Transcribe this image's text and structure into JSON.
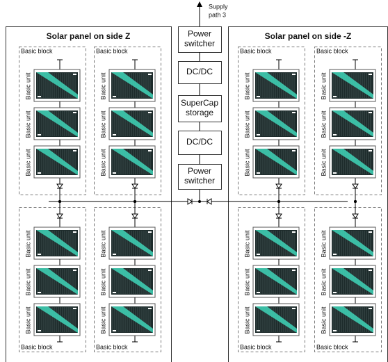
{
  "supply_label": [
    "Supply",
    "path 3"
  ],
  "center_boxes": [
    {
      "lines": [
        "Power",
        "switcher"
      ]
    },
    {
      "lines": [
        "DC/DC"
      ]
    },
    {
      "lines": [
        "SuperCap",
        "storage"
      ]
    },
    {
      "lines": [
        "DC/DC"
      ]
    },
    {
      "lines": [
        "Power",
        "switcher"
      ]
    }
  ],
  "panels": [
    {
      "title": "Solar panel on side Z",
      "blocks": [
        {
          "label": "Basic block",
          "units": [
            "Basic unit",
            "Basic unit",
            "Basic unit"
          ]
        },
        {
          "label": "Basic block",
          "units": [
            "Basic unit",
            "Basic unit",
            "Basic unit"
          ]
        },
        {
          "label": "Basic block",
          "units": [
            "Basic unit",
            "Basic unit",
            "Basic unit"
          ]
        },
        {
          "label": "Basic block",
          "units": [
            "Basic unit",
            "Basic unit",
            "Basic unit"
          ]
        }
      ]
    },
    {
      "title": "Solar panel on side -Z",
      "blocks": [
        {
          "label": "Basic block",
          "units": [
            "Basic unit",
            "Basic unit",
            "Basic unit"
          ]
        },
        {
          "label": "Basic block",
          "units": [
            "Basic unit",
            "Basic unit",
            "Basic unit"
          ]
        },
        {
          "label": "Basic block",
          "units": [
            "Basic unit",
            "Basic unit",
            "Basic unit"
          ]
        },
        {
          "label": "Basic block",
          "units": [
            "Basic unit",
            "Basic unit",
            "Basic unit"
          ]
        }
      ]
    }
  ]
}
